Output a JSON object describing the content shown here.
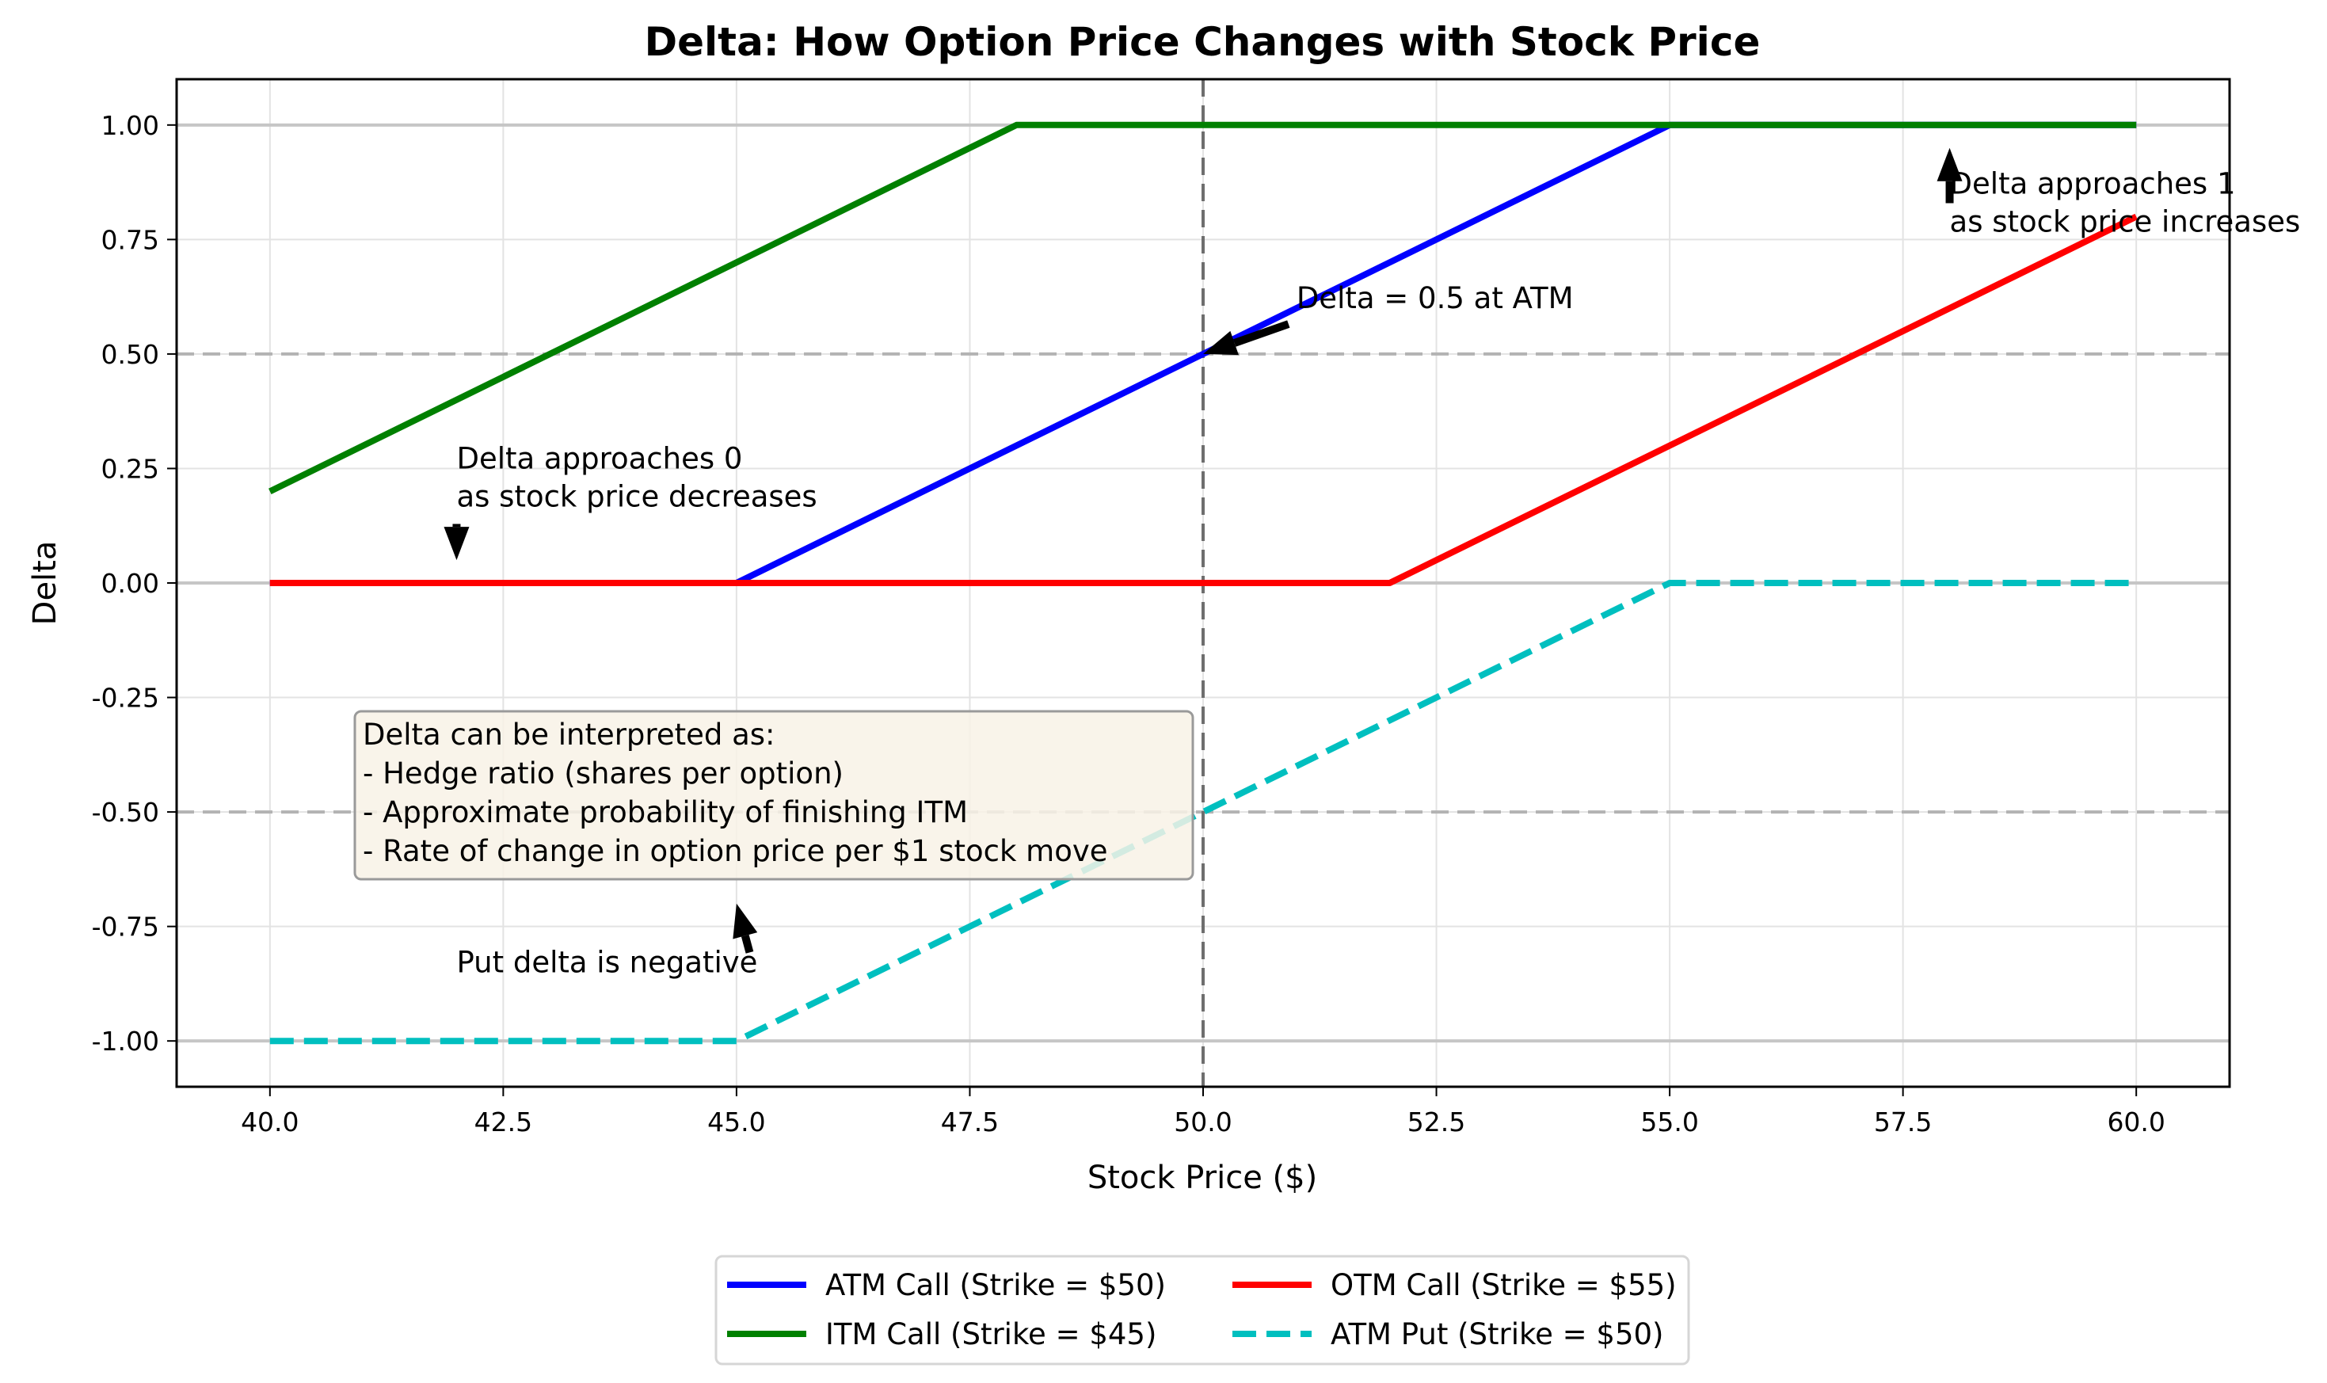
{
  "chart_data": {
    "type": "line",
    "title": "Delta: How Option Price Changes with Stock Price",
    "xlabel": "Stock Price ($)",
    "ylabel": "Delta",
    "xlim": [
      39.0,
      61.0
    ],
    "ylim": [
      -1.1,
      1.1
    ],
    "xticks": [
      40.0,
      42.5,
      45.0,
      47.5,
      50.0,
      52.5,
      55.0,
      57.5,
      60.0
    ],
    "xtick_labels": [
      "40.0",
      "42.5",
      "45.0",
      "47.5",
      "50.0",
      "52.5",
      "55.0",
      "57.5",
      "60.0"
    ],
    "yticks": [
      1.0,
      0.75,
      0.5,
      0.25,
      0.0,
      -0.25,
      -0.5,
      -0.75,
      -1.0
    ],
    "ytick_labels": [
      "1.00",
      "0.75",
      "0.50",
      "0.25",
      "0.00",
      "-0.25",
      "-0.50",
      "-0.75",
      "-1.00"
    ],
    "grid": true,
    "reference_lines": {
      "horizontal_solid": [
        1.0,
        0.0,
        -1.0
      ],
      "horizontal_dashed": [
        0.5,
        -0.5
      ],
      "vertical_dashed": [
        50.0
      ]
    },
    "series": [
      {
        "name": "ATM Call (Strike = $50)",
        "color": "#0000ff",
        "style": "solid",
        "x": [
          40,
          45,
          55,
          60
        ],
        "y": [
          0.0,
          0.0,
          1.0,
          1.0
        ]
      },
      {
        "name": "ITM Call (Strike = $45)",
        "color": "#008000",
        "style": "solid",
        "x": [
          40,
          48,
          60
        ],
        "y": [
          0.2,
          1.0,
          1.0
        ]
      },
      {
        "name": "OTM Call (Strike = $55)",
        "color": "#ff0000",
        "style": "solid",
        "x": [
          40,
          52,
          60
        ],
        "y": [
          0.0,
          0.0,
          0.8
        ]
      },
      {
        "name": "ATM Put (Strike = $50)",
        "color": "#00bfbf",
        "style": "dashed",
        "x": [
          40,
          45,
          55,
          60
        ],
        "y": [
          -1.0,
          -1.0,
          0.0,
          0.0
        ]
      }
    ],
    "legend": {
      "position": "bottom-center",
      "columns": 2,
      "entries": [
        "ATM Call (Strike = $50)",
        "ITM Call (Strike = $45)",
        "OTM Call (Strike = $55)",
        "ATM Put (Strike = $50)"
      ]
    },
    "annotations": [
      {
        "id": "atm",
        "lines": [
          "Delta = 0.5 at ATM"
        ],
        "text_xy": [
          51.0,
          0.6
        ],
        "arrow_to": [
          50.0,
          0.5
        ]
      },
      {
        "id": "approach-zero",
        "lines": [
          "Delta approaches 0",
          "as stock price decreases"
        ],
        "text_xy": [
          42.0,
          0.25
        ],
        "arrow_to": [
          42.0,
          0.05
        ]
      },
      {
        "id": "approach-one",
        "lines": [
          "Delta approaches 1",
          "as stock price increases"
        ],
        "text_xy": [
          58.0,
          0.85
        ],
        "arrow_to": [
          58.0,
          0.95
        ]
      },
      {
        "id": "put-negative",
        "lines": [
          "Put delta is negative"
        ],
        "text_xy": [
          42.0,
          -0.85
        ],
        "arrow_to": [
          45.0,
          -0.7
        ]
      }
    ],
    "info_box": {
      "lines": [
        "Delta can be interpreted as:",
        "- Hedge ratio (shares per option)",
        "- Approximate probability of finishing ITM",
        "- Rate of change in option price per $1 stock move"
      ],
      "background": "#f8f2e6"
    }
  }
}
